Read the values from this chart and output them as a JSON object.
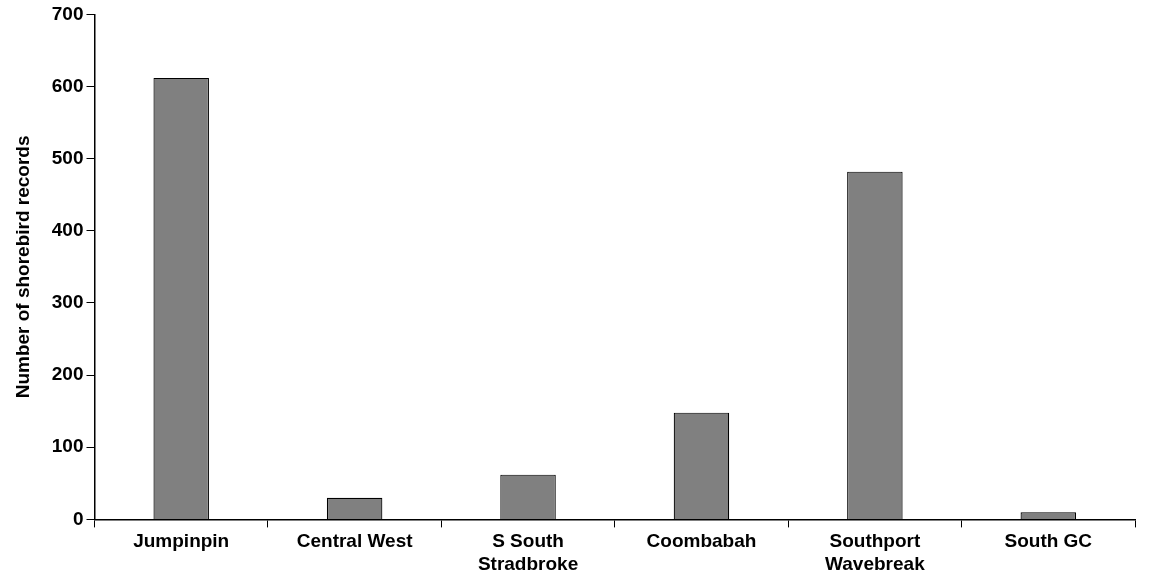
{
  "chart_data": {
    "type": "bar",
    "ylabel": "Number of shorebird records",
    "categories": [
      "Jumpinpin",
      "Central West",
      "S South Stradbroke",
      "Coombabah",
      "Southport Wavebreak",
      "South GC"
    ],
    "values": [
      612,
      30,
      62,
      148,
      482,
      10
    ],
    "color": "#808080",
    "ylim": [
      0,
      700
    ],
    "yticks": [
      0,
      100,
      200,
      300,
      400,
      500,
      600,
      700
    ],
    "grid": false,
    "legend": false
  }
}
